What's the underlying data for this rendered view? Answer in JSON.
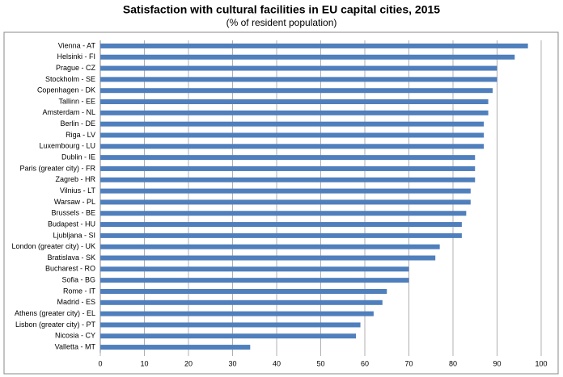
{
  "chart_data": {
    "type": "hbar",
    "title": "Satisfaction with cultural facilities in EU capital cities, 2015",
    "subtitle": "(% of resident population)",
    "categories": [
      "Vienna - AT",
      "Helsinki - FI",
      "Prague - CZ",
      "Stockholm - SE",
      "Copenhagen - DK",
      "Tallinn - EE",
      "Amsterdam - NL",
      "Berlin - DE",
      "Riga - LV",
      "Luxembourg - LU",
      "Dublin - IE",
      "Paris (greater city) - FR",
      "Zagreb - HR",
      "Vilnius - LT",
      "Warsaw - PL",
      "Brussels - BE",
      "Budapest - HU",
      "Ljubljana - SI",
      "London (greater city) - UK",
      "Bratislava - SK",
      "Bucharest - RO",
      "Sofia - BG",
      "Rome - IT",
      "Madrid - ES",
      "Athens (greater city) - EL",
      "Lisbon (greater city) - PT",
      "Nicosia - CY",
      "Valletta - MT"
    ],
    "values": [
      97,
      94,
      90,
      90,
      89,
      88,
      88,
      87,
      87,
      87,
      85,
      85,
      85,
      84,
      84,
      83,
      82,
      82,
      77,
      76,
      70,
      70,
      65,
      64,
      62,
      59,
      58,
      34
    ],
    "color": "#4f7fbc",
    "xlim": [
      0,
      100
    ],
    "xticks": [
      0,
      10,
      20,
      30,
      40,
      50,
      60,
      70,
      80,
      90,
      100
    ],
    "grid": true
  }
}
